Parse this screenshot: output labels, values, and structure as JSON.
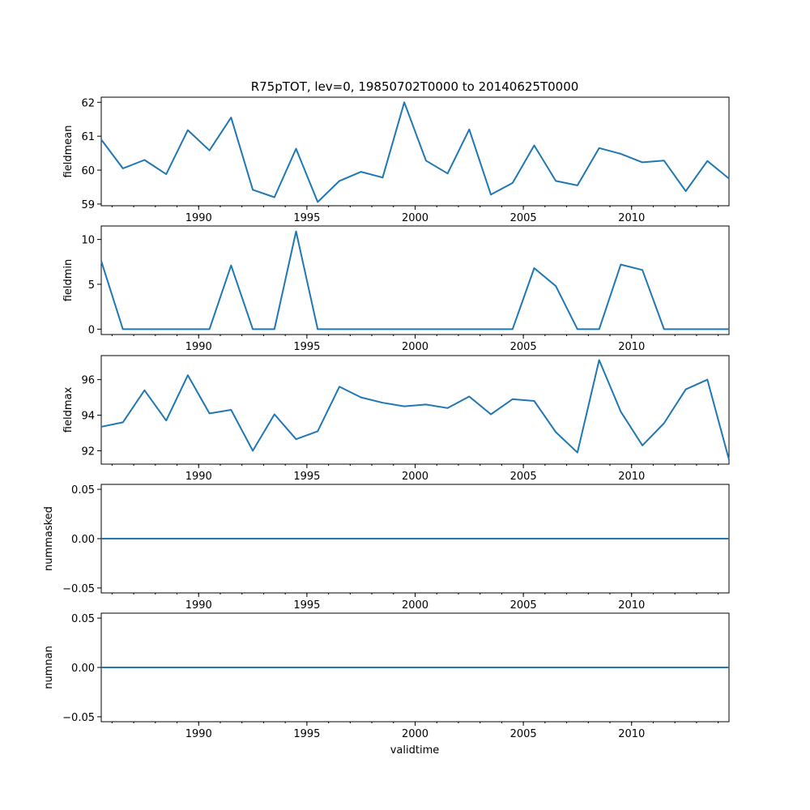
{
  "title": "R75pTOT, lev=0, 19850702T0000 to 20140625T0000",
  "xlabel": "validtime",
  "chart_data": [
    {
      "type": "line",
      "ylabel": "fieldmean",
      "xlim": [
        1985.5,
        2014.5
      ],
      "ylim": [
        58.95,
        62.15
      ],
      "yticks": [
        "59",
        "60",
        "61",
        "62"
      ],
      "xticks": [
        "1990",
        "1995",
        "2000",
        "2005",
        "2010"
      ],
      "x": [
        1985.5,
        1986.5,
        1987.5,
        1988.5,
        1989.5,
        1990.5,
        1991.5,
        1992.5,
        1993.5,
        1994.5,
        1995.5,
        1996.5,
        1997.5,
        1998.5,
        1999.5,
        2000.5,
        2001.5,
        2002.5,
        2003.5,
        2004.5,
        2005.5,
        2006.5,
        2007.5,
        2008.5,
        2009.5,
        2010.5,
        2011.5,
        2012.5,
        2013.5,
        2014.5
      ],
      "values": [
        60.9,
        60.05,
        60.3,
        59.88,
        61.18,
        60.58,
        61.55,
        59.42,
        59.2,
        60.63,
        59.06,
        59.68,
        59.95,
        59.78,
        62.0,
        60.28,
        59.9,
        61.2,
        59.28,
        59.62,
        60.73,
        59.68,
        59.55,
        60.65,
        60.48,
        60.23,
        60.28,
        59.38,
        60.27,
        59.75
      ],
      "series": [
        {
          "values": [
            60.9,
            60.05,
            60.3,
            59.88,
            61.18,
            60.58,
            61.55,
            59.42,
            59.2,
            60.63,
            59.06,
            59.68,
            59.95,
            59.78,
            62.0,
            60.28,
            59.9,
            61.2,
            59.28,
            59.62,
            60.73,
            59.68,
            59.55,
            60.65,
            60.48,
            60.23,
            60.28,
            59.38,
            60.27,
            59.75
          ]
        }
      ]
    },
    {
      "type": "line",
      "ylabel": "fieldmin",
      "xlim": [
        1985.5,
        2014.5
      ],
      "ylim": [
        -0.6,
        11.5
      ],
      "yticks": [
        "0",
        "5",
        "10"
      ],
      "xticks": [
        "1990",
        "1995",
        "2000",
        "2005",
        "2010"
      ],
      "x": [
        1985.5,
        1986.5,
        1987.5,
        1988.5,
        1989.5,
        1990.5,
        1991.5,
        1992.5,
        1993.5,
        1994.5,
        1995.5,
        1996.5,
        1997.5,
        1998.5,
        1999.5,
        2000.5,
        2001.5,
        2002.5,
        2003.5,
        2004.5,
        2005.5,
        2006.5,
        2007.5,
        2008.5,
        2009.5,
        2010.5,
        2011.5,
        2012.5,
        2013.5,
        2014.5
      ],
      "values": [
        7.6,
        0,
        0,
        0,
        0,
        0,
        7.1,
        0,
        0,
        10.9,
        0,
        0,
        0,
        0,
        0,
        0,
        0,
        0,
        0,
        0,
        6.8,
        4.8,
        0,
        0,
        7.2,
        6.6,
        0,
        0,
        0,
        0
      ],
      "series": [
        {
          "values": [
            7.6,
            0,
            0,
            0,
            0,
            0,
            7.1,
            0,
            0,
            10.9,
            0,
            0,
            0,
            0,
            0,
            0,
            0,
            0,
            0,
            0,
            6.8,
            4.8,
            0,
            0,
            7.2,
            6.6,
            0,
            0,
            0,
            0
          ]
        }
      ]
    },
    {
      "type": "line",
      "ylabel": "fieldmax",
      "xlim": [
        1985.5,
        2014.5
      ],
      "ylim": [
        91.25,
        97.35
      ],
      "yticks": [
        "92",
        "94",
        "96"
      ],
      "xticks": [
        "1990",
        "1995",
        "2000",
        "2005",
        "2010"
      ],
      "x": [
        1985.5,
        1986.5,
        1987.5,
        1988.5,
        1989.5,
        1990.5,
        1991.5,
        1992.5,
        1993.5,
        1994.5,
        1995.5,
        1996.5,
        1997.5,
        1998.5,
        1999.5,
        2000.5,
        2001.5,
        2002.5,
        2003.5,
        2004.5,
        2005.5,
        2006.5,
        2007.5,
        2008.5,
        2009.5,
        2010.5,
        2011.5,
        2012.5,
        2013.5,
        2014.5
      ],
      "values": [
        93.35,
        93.6,
        95.4,
        93.7,
        96.25,
        94.1,
        94.3,
        92.0,
        94.05,
        92.65,
        93.1,
        95.6,
        95.0,
        94.7,
        94.5,
        94.6,
        94.4,
        95.05,
        94.05,
        94.9,
        94.8,
        93.05,
        91.9,
        97.1,
        94.2,
        92.3,
        93.55,
        95.45,
        96.0,
        91.5
      ],
      "series": [
        {
          "values": [
            93.35,
            93.6,
            95.4,
            93.7,
            96.25,
            94.1,
            94.3,
            92.0,
            94.05,
            92.65,
            93.1,
            95.6,
            95.0,
            94.7,
            94.5,
            94.6,
            94.4,
            95.05,
            94.05,
            94.9,
            94.8,
            93.05,
            91.9,
            97.1,
            94.2,
            92.3,
            93.55,
            95.45,
            96.0,
            91.5
          ]
        }
      ]
    },
    {
      "type": "line",
      "ylabel": "nummasked",
      "xlim": [
        1985.5,
        2014.5
      ],
      "ylim": [
        -0.055,
        0.055
      ],
      "yticks": [
        "−0.05",
        "0.00",
        "0.05"
      ],
      "xticks": [
        "1990",
        "1995",
        "2000",
        "2005",
        "2010"
      ],
      "x": [
        1985.5,
        1986.5,
        1987.5,
        1988.5,
        1989.5,
        1990.5,
        1991.5,
        1992.5,
        1993.5,
        1994.5,
        1995.5,
        1996.5,
        1997.5,
        1998.5,
        1999.5,
        2000.5,
        2001.5,
        2002.5,
        2003.5,
        2004.5,
        2005.5,
        2006.5,
        2007.5,
        2008.5,
        2009.5,
        2010.5,
        2011.5,
        2012.5,
        2013.5,
        2014.5
      ],
      "values": [
        0,
        0,
        0,
        0,
        0,
        0,
        0,
        0,
        0,
        0,
        0,
        0,
        0,
        0,
        0,
        0,
        0,
        0,
        0,
        0,
        0,
        0,
        0,
        0,
        0,
        0,
        0,
        0,
        0,
        0
      ],
      "series": [
        {
          "values": [
            0,
            0,
            0,
            0,
            0,
            0,
            0,
            0,
            0,
            0,
            0,
            0,
            0,
            0,
            0,
            0,
            0,
            0,
            0,
            0,
            0,
            0,
            0,
            0,
            0,
            0,
            0,
            0,
            0,
            0
          ]
        }
      ]
    },
    {
      "type": "line",
      "ylabel": "numnan",
      "xlim": [
        1985.5,
        2014.5
      ],
      "ylim": [
        -0.055,
        0.055
      ],
      "yticks": [
        "−0.05",
        "0.00",
        "0.05"
      ],
      "xticks": [
        "1990",
        "1995",
        "2000",
        "2005",
        "2010"
      ],
      "x": [
        1985.5,
        1986.5,
        1987.5,
        1988.5,
        1989.5,
        1990.5,
        1991.5,
        1992.5,
        1993.5,
        1994.5,
        1995.5,
        1996.5,
        1997.5,
        1998.5,
        1999.5,
        2000.5,
        2001.5,
        2002.5,
        2003.5,
        2004.5,
        2005.5,
        2006.5,
        2007.5,
        2008.5,
        2009.5,
        2010.5,
        2011.5,
        2012.5,
        2013.5,
        2014.5
      ],
      "values": [
        0,
        0,
        0,
        0,
        0,
        0,
        0,
        0,
        0,
        0,
        0,
        0,
        0,
        0,
        0,
        0,
        0,
        0,
        0,
        0,
        0,
        0,
        0,
        0,
        0,
        0,
        0,
        0,
        0,
        0
      ],
      "series": [
        {
          "values": [
            0,
            0,
            0,
            0,
            0,
            0,
            0,
            0,
            0,
            0,
            0,
            0,
            0,
            0,
            0,
            0,
            0,
            0,
            0,
            0,
            0,
            0,
            0,
            0,
            0,
            0,
            0,
            0,
            0,
            0
          ]
        }
      ]
    }
  ],
  "colors": {
    "line": "#1f77b4",
    "frame": "#000000",
    "background": "#ffffff"
  }
}
